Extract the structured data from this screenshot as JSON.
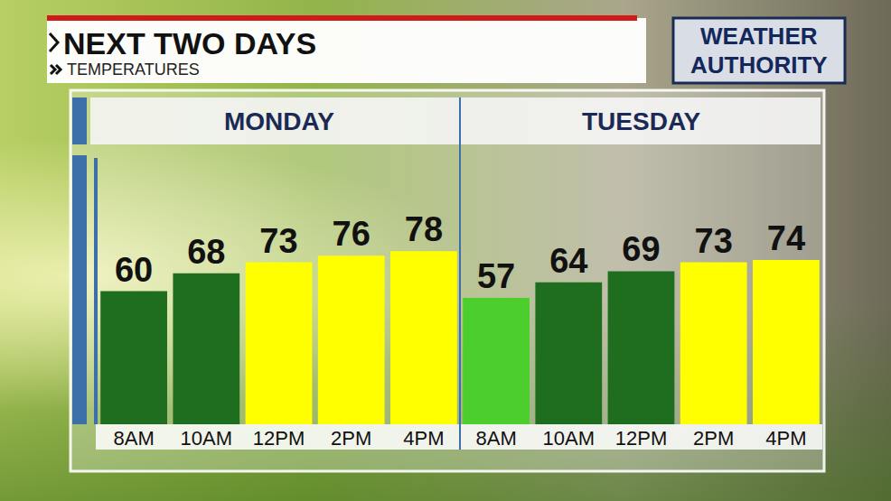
{
  "chart_data": {
    "type": "bar",
    "title": "NEXT TWO DAYS",
    "subtitle": "TEMPERATURES",
    "logo": [
      "WEATHER",
      "AUTHORITY"
    ],
    "groups": [
      {
        "label": "MONDAY",
        "count": 5
      },
      {
        "label": "TUESDAY",
        "count": 5
      }
    ],
    "categories": [
      "8AM",
      "10AM",
      "12PM",
      "2PM",
      "4PM",
      "8AM",
      "10AM",
      "12PM",
      "2PM",
      "4PM"
    ],
    "values": [
      60,
      68,
      73,
      76,
      78,
      57,
      64,
      69,
      73,
      74
    ],
    "colors": [
      "#1f6e1f",
      "#1f6e1f",
      "#ffff00",
      "#ffff00",
      "#ffff00",
      "#4ccf2c",
      "#1f6e1f",
      "#1f6e1f",
      "#ffff00",
      "#ffff00"
    ],
    "ylim": [
      0,
      120
    ],
    "grid": false,
    "data_labels": true,
    "tick_labels": "x"
  }
}
